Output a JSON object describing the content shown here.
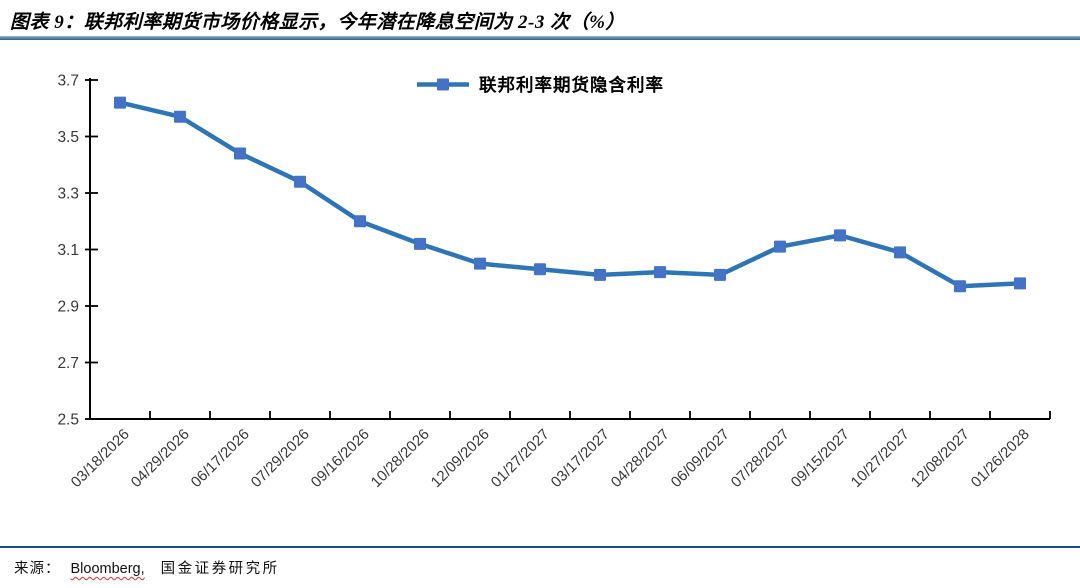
{
  "figure": {
    "title": "图表 9：联邦利率期货市场价格显示，今年潜在降息空间为 2-3 次（%）"
  },
  "footer": {
    "source_label": "来源：",
    "source_bloomberg": "Bloomberg,",
    "source_institution": "国金证券研究所"
  },
  "chart_data": {
    "type": "line",
    "title": "",
    "xlabel": "",
    "ylabel": "",
    "categories": [
      "03/18/2026",
      "04/29/2026",
      "06/17/2026",
      "07/29/2026",
      "09/16/2026",
      "10/28/2026",
      "12/09/2026",
      "01/27/2027",
      "03/17/2027",
      "04/28/2027",
      "06/09/2027",
      "07/28/2027",
      "09/15/2027",
      "10/27/2027",
      "12/08/2027",
      "01/26/2028"
    ],
    "series": [
      {
        "name": "联邦利率期货隐含利率",
        "values": [
          3.62,
          3.57,
          3.44,
          3.34,
          3.2,
          3.12,
          3.05,
          3.03,
          3.01,
          3.02,
          3.01,
          3.11,
          3.15,
          3.09,
          2.97,
          2.98
        ]
      }
    ],
    "ylim": [
      2.5,
      3.7
    ],
    "yticks": [
      2.5,
      2.7,
      2.9,
      3.1,
      3.3,
      3.5,
      3.7
    ],
    "grid": false,
    "legend_position": "top-center",
    "marker": "square",
    "colors": {
      "line": "#2E75B6",
      "marker": "#4472C4",
      "axis": "#000000"
    }
  }
}
